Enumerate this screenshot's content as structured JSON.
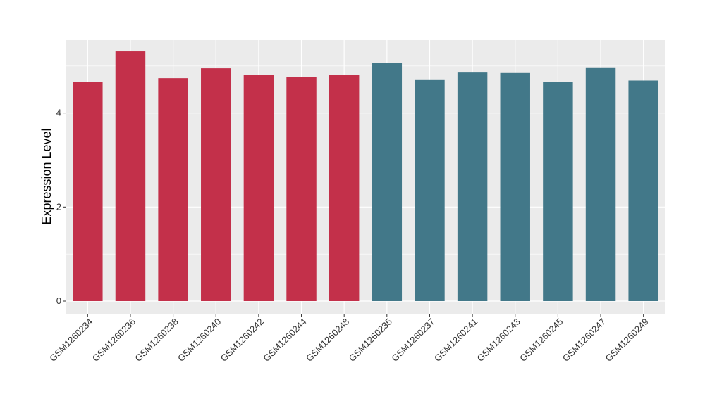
{
  "chart_data": {
    "type": "bar",
    "title": "",
    "xlabel": "",
    "ylabel": "Expression Level",
    "ylim": [
      0,
      5.55
    ],
    "yticks": [
      0,
      2,
      4
    ],
    "categories": [
      "GSM1260234",
      "GSM1260236",
      "GSM1260238",
      "GSM1260240",
      "GSM1260242",
      "GSM1260244",
      "GSM1260248",
      "GSM1260235",
      "GSM1260237",
      "GSM1260241",
      "GSM1260243",
      "GSM1260245",
      "GSM1260247",
      "GSM1260249"
    ],
    "values": [
      4.66,
      5.31,
      4.74,
      4.95,
      4.81,
      4.76,
      4.81,
      5.07,
      4.7,
      4.86,
      4.85,
      4.66,
      4.97,
      4.69
    ],
    "groups": [
      0,
      0,
      0,
      0,
      0,
      0,
      0,
      1,
      1,
      1,
      1,
      1,
      1,
      1
    ],
    "group_colors": [
      "#c3304a",
      "#427889"
    ],
    "grid": true,
    "panel_background": "#ebebeb",
    "legend": "none"
  }
}
